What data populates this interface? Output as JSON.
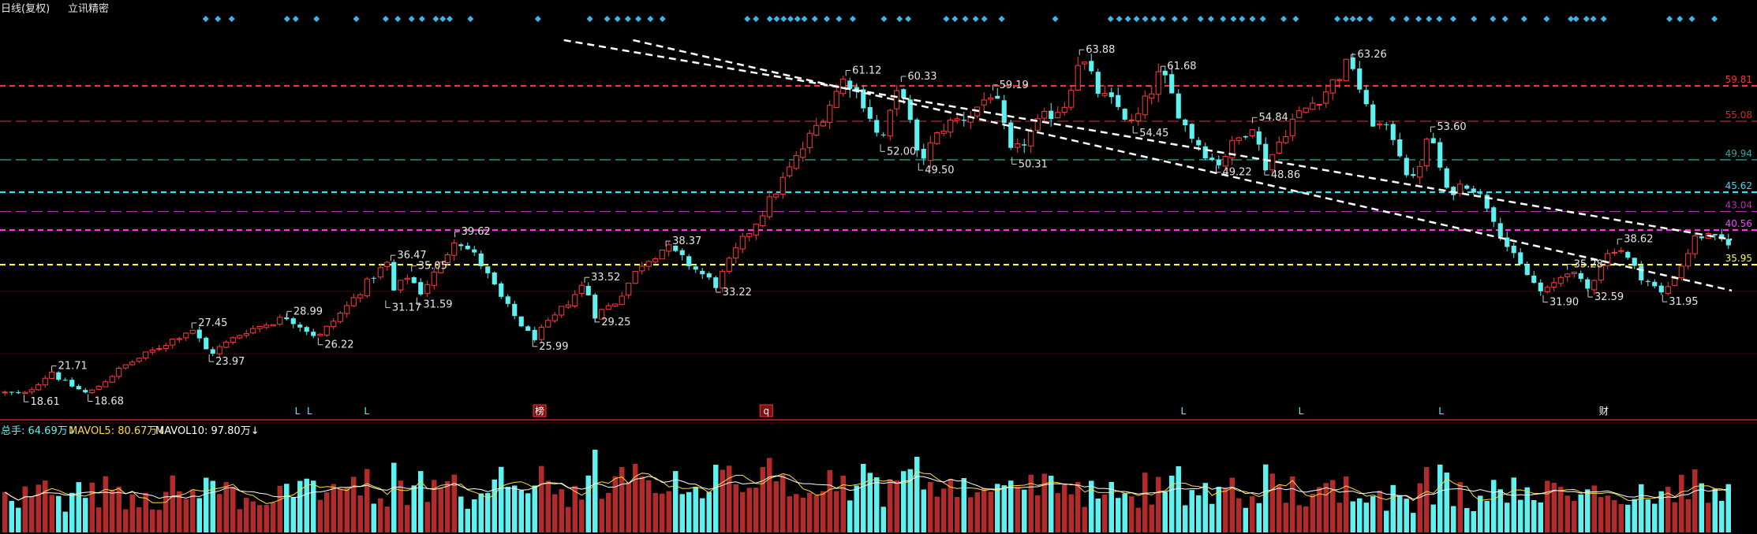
{
  "header": {
    "title": "日线(复权)",
    "stock": "立讯精密"
  },
  "colors": {
    "up": "#ff3c3c",
    "down": "#5ff0f0",
    "trendline": "#ffffff",
    "diamond": "#3fb4e6",
    "ma5": "#ffdc3c",
    "ma10": "#ffffff",
    "volume_label": "#5ff0f0"
  },
  "chart_data": {
    "type": "candlestick",
    "y_range": [
      16,
      66
    ],
    "levels": [
      {
        "value": 59.81,
        "label": "59.81",
        "color": "#ff3333",
        "style": "dashed-heavy"
      },
      {
        "value": 55.08,
        "label": "55.08",
        "color": "#cc2b2b",
        "style": "dashed"
      },
      {
        "value": 49.94,
        "label": "49.94",
        "color": "#2fa6a6",
        "style": "dashed"
      },
      {
        "value": 45.62,
        "label": "45.62",
        "color": "#36e0f0",
        "style": "dashed-heavy"
      },
      {
        "value": 43.04,
        "label": "43.04",
        "color": "#b42fb4",
        "style": "dashed"
      },
      {
        "value": 40.56,
        "label": "40.56",
        "color": "#ff3cff",
        "style": "dashed-heavy"
      },
      {
        "value": 35.95,
        "label": "35.95",
        "color": "#ffff3c",
        "style": "dashed-heavy"
      }
    ],
    "annotations": [
      {
        "t": 0.013,
        "price": 18.61,
        "label": "18.61",
        "pos": "below"
      },
      {
        "t": 0.029,
        "price": 21.71,
        "label": "21.71",
        "pos": "above"
      },
      {
        "t": 0.05,
        "price": 18.68,
        "label": "18.68",
        "pos": "below"
      },
      {
        "t": 0.11,
        "price": 27.45,
        "label": "27.45",
        "pos": "above"
      },
      {
        "t": 0.12,
        "price": 23.97,
        "label": "23.97",
        "pos": "below"
      },
      {
        "t": 0.165,
        "price": 28.99,
        "label": "28.99",
        "pos": "above"
      },
      {
        "t": 0.183,
        "price": 26.22,
        "label": "26.22",
        "pos": "below"
      },
      {
        "t": 0.225,
        "price": 36.47,
        "label": "36.47",
        "pos": "above"
      },
      {
        "t": 0.222,
        "price": 31.17,
        "label": "31.17",
        "pos": "below"
      },
      {
        "t": 0.237,
        "price": 35.05,
        "label": "35.05",
        "pos": "above"
      },
      {
        "t": 0.24,
        "price": 31.59,
        "label": "31.59",
        "pos": "below"
      },
      {
        "t": 0.262,
        "price": 39.62,
        "label": "39.62",
        "pos": "above"
      },
      {
        "t": 0.307,
        "price": 25.99,
        "label": "25.99",
        "pos": "below"
      },
      {
        "t": 0.337,
        "price": 33.52,
        "label": "33.52",
        "pos": "above"
      },
      {
        "t": 0.343,
        "price": 29.25,
        "label": "29.25",
        "pos": "below"
      },
      {
        "t": 0.384,
        "price": 38.37,
        "label": "38.37",
        "pos": "above"
      },
      {
        "t": 0.413,
        "price": 33.22,
        "label": "33.22",
        "pos": "below"
      },
      {
        "t": 0.488,
        "price": 61.12,
        "label": "61.12",
        "pos": "above"
      },
      {
        "t": 0.52,
        "price": 60.33,
        "label": "60.33",
        "pos": "above"
      },
      {
        "t": 0.508,
        "price": 52.0,
        "label": "52.00",
        "pos": "below"
      },
      {
        "t": 0.53,
        "price": 49.5,
        "label": "49.50",
        "pos": "below"
      },
      {
        "t": 0.573,
        "price": 59.19,
        "label": "59.19",
        "pos": "above"
      },
      {
        "t": 0.584,
        "price": 50.31,
        "label": "50.31",
        "pos": "below"
      },
      {
        "t": 0.623,
        "price": 63.88,
        "label": "63.88",
        "pos": "above"
      },
      {
        "t": 0.67,
        "price": 61.68,
        "label": "61.68",
        "pos": "above"
      },
      {
        "t": 0.654,
        "price": 54.45,
        "label": "54.45",
        "pos": "below"
      },
      {
        "t": 0.702,
        "price": 49.22,
        "label": "49.22",
        "pos": "below"
      },
      {
        "t": 0.723,
        "price": 54.84,
        "label": "54.84",
        "pos": "above"
      },
      {
        "t": 0.73,
        "price": 48.86,
        "label": "48.86",
        "pos": "below"
      },
      {
        "t": 0.78,
        "price": 63.26,
        "label": "63.26",
        "pos": "above"
      },
      {
        "t": 0.826,
        "price": 53.6,
        "label": "53.60",
        "pos": "above"
      },
      {
        "t": 0.891,
        "price": 31.9,
        "label": "31.90",
        "pos": "below"
      },
      {
        "t": 0.905,
        "price": 35.28,
        "label": "35.28",
        "pos": "above"
      },
      {
        "t": 0.917,
        "price": 32.59,
        "label": "32.59",
        "pos": "below"
      },
      {
        "t": 0.934,
        "price": 38.62,
        "label": "38.62",
        "pos": "above"
      },
      {
        "t": 0.96,
        "price": 31.95,
        "label": "31.95",
        "pos": "below"
      }
    ],
    "price_path": [
      [
        0.0,
        18.9
      ],
      [
        0.013,
        18.61
      ],
      [
        0.029,
        21.71
      ],
      [
        0.035,
        20.4
      ],
      [
        0.05,
        18.68
      ],
      [
        0.07,
        22.3
      ],
      [
        0.09,
        24.8
      ],
      [
        0.11,
        27.45
      ],
      [
        0.12,
        23.97
      ],
      [
        0.14,
        27.0
      ],
      [
        0.165,
        28.99
      ],
      [
        0.183,
        26.22
      ],
      [
        0.2,
        30.5
      ],
      [
        0.215,
        34.5
      ],
      [
        0.225,
        36.47
      ],
      [
        0.222,
        31.17
      ],
      [
        0.237,
        35.05
      ],
      [
        0.24,
        31.59
      ],
      [
        0.255,
        36.3
      ],
      [
        0.262,
        39.62
      ],
      [
        0.275,
        36.8
      ],
      [
        0.29,
        31.0
      ],
      [
        0.307,
        25.99
      ],
      [
        0.32,
        29.0
      ],
      [
        0.337,
        33.52
      ],
      [
        0.343,
        29.25
      ],
      [
        0.355,
        31.0
      ],
      [
        0.37,
        36.1
      ],
      [
        0.384,
        38.37
      ],
      [
        0.395,
        36.4
      ],
      [
        0.413,
        33.22
      ],
      [
        0.425,
        38.0
      ],
      [
        0.44,
        43.0
      ],
      [
        0.455,
        48.5
      ],
      [
        0.47,
        54.0
      ],
      [
        0.48,
        58.0
      ],
      [
        0.488,
        61.12
      ],
      [
        0.5,
        57.0
      ],
      [
        0.508,
        52.0
      ],
      [
        0.52,
        60.33
      ],
      [
        0.53,
        49.5
      ],
      [
        0.545,
        54.5
      ],
      [
        0.56,
        56.0
      ],
      [
        0.573,
        59.19
      ],
      [
        0.584,
        50.31
      ],
      [
        0.6,
        55.0
      ],
      [
        0.615,
        57.5
      ],
      [
        0.623,
        63.88
      ],
      [
        0.635,
        58.5
      ],
      [
        0.645,
        57.0
      ],
      [
        0.654,
        54.45
      ],
      [
        0.67,
        61.68
      ],
      [
        0.685,
        54.0
      ],
      [
        0.702,
        49.22
      ],
      [
        0.712,
        52.0
      ],
      [
        0.723,
        54.84
      ],
      [
        0.73,
        48.86
      ],
      [
        0.745,
        55.0
      ],
      [
        0.765,
        59.0
      ],
      [
        0.78,
        63.26
      ],
      [
        0.79,
        55.5
      ],
      [
        0.805,
        53.0
      ],
      [
        0.815,
        46.5
      ],
      [
        0.826,
        53.6
      ],
      [
        0.835,
        45.5
      ],
      [
        0.848,
        47.0
      ],
      [
        0.86,
        43.5
      ],
      [
        0.872,
        37.5
      ],
      [
        0.882,
        34.5
      ],
      [
        0.891,
        31.9
      ],
      [
        0.905,
        35.28
      ],
      [
        0.917,
        32.59
      ],
      [
        0.925,
        36.5
      ],
      [
        0.934,
        38.62
      ],
      [
        0.945,
        35.0
      ],
      [
        0.96,
        31.95
      ],
      [
        0.97,
        35.5
      ],
      [
        0.98,
        40.0
      ],
      [
        0.99,
        39.3
      ],
      [
        1.0,
        39.0
      ]
    ],
    "trendlines": [
      {
        "from": [
          0.325,
          65.9
        ],
        "to": [
          1.0,
          39.3
        ]
      },
      {
        "from": [
          0.365,
          65.9
        ],
        "to": [
          1.0,
          32.5
        ]
      }
    ],
    "bottom_markers": [
      {
        "t": 0.171,
        "label": "L",
        "color": "#5ff0f0",
        "boxed": false
      },
      {
        "t": 0.178,
        "label": "L",
        "color": "#5ff0f0",
        "boxed": false
      },
      {
        "t": 0.211,
        "label": "L",
        "color": "#5ff0f0",
        "boxed": false
      },
      {
        "t": 0.311,
        "label": "榜",
        "color": "#ffffff",
        "boxed": true
      },
      {
        "t": 0.442,
        "label": "q",
        "color": "#ffffff",
        "boxed": true
      },
      {
        "t": 0.683,
        "label": "L",
        "color": "#5ff0f0",
        "boxed": false
      },
      {
        "t": 0.751,
        "label": "L",
        "color": "#5ff0f0",
        "boxed": false
      },
      {
        "t": 0.832,
        "label": "L",
        "color": "#5ff0f0",
        "boxed": false
      },
      {
        "t": 0.926,
        "label": "财",
        "color": "#ffffff",
        "boxed": false
      }
    ],
    "diamonds_top": [
      0.118,
      0.125,
      0.133,
      0.165,
      0.17,
      0.182,
      0.205,
      0.222,
      0.229,
      0.237,
      0.243,
      0.251,
      0.255,
      0.259,
      0.271,
      0.31,
      0.34,
      0.35,
      0.356,
      0.362,
      0.368,
      0.375,
      0.382,
      0.431,
      0.436,
      0.444,
      0.448,
      0.452,
      0.456,
      0.46,
      0.464,
      0.47,
      0.477,
      0.484,
      0.492,
      0.51,
      0.519,
      0.524,
      0.546,
      0.551,
      0.557,
      0.563,
      0.568,
      0.578,
      0.609,
      0.641,
      0.646,
      0.651,
      0.656,
      0.661,
      0.666,
      0.671,
      0.678,
      0.684,
      0.693,
      0.699,
      0.706,
      0.712,
      0.717,
      0.723,
      0.729,
      0.741,
      0.748,
      0.772,
      0.777,
      0.781,
      0.785,
      0.791,
      0.804,
      0.812,
      0.819,
      0.825,
      0.831,
      0.839,
      0.851,
      0.862,
      0.869,
      0.88,
      0.893,
      0.907,
      0.91,
      0.916,
      0.92,
      0.926,
      0.964,
      0.97,
      0.977,
      0.99
    ],
    "volume": {
      "labels": {
        "total": "总手: 64.69万↓",
        "mavol5": "MAVOL5: 80.67万↓",
        "mavol10": "MAVOL10: 97.80万↓"
      },
      "y_max": 320
    }
  }
}
